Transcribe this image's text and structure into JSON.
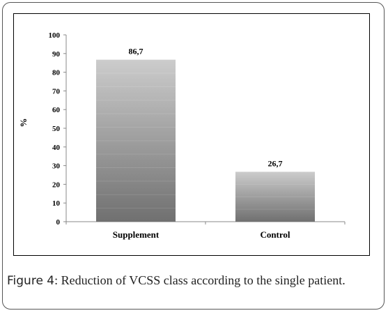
{
  "caption": {
    "label": "Figure 4",
    "text": ": Reduction of VCSS class according to the single patient."
  },
  "chart_data": {
    "type": "bar",
    "categories": [
      "Supplement",
      "Control"
    ],
    "values": [
      86.7,
      26.7
    ],
    "data_labels": [
      "86,7",
      "26,7"
    ],
    "title": "",
    "xlabel": "",
    "ylabel": "%",
    "ylim": [
      0,
      100
    ],
    "yticks": [
      0,
      10,
      20,
      30,
      40,
      50,
      60,
      70,
      80,
      90,
      100
    ],
    "grid": false,
    "legend": "none",
    "bar_gradient": {
      "top": "#cccccc",
      "bottom": "#707070"
    }
  }
}
